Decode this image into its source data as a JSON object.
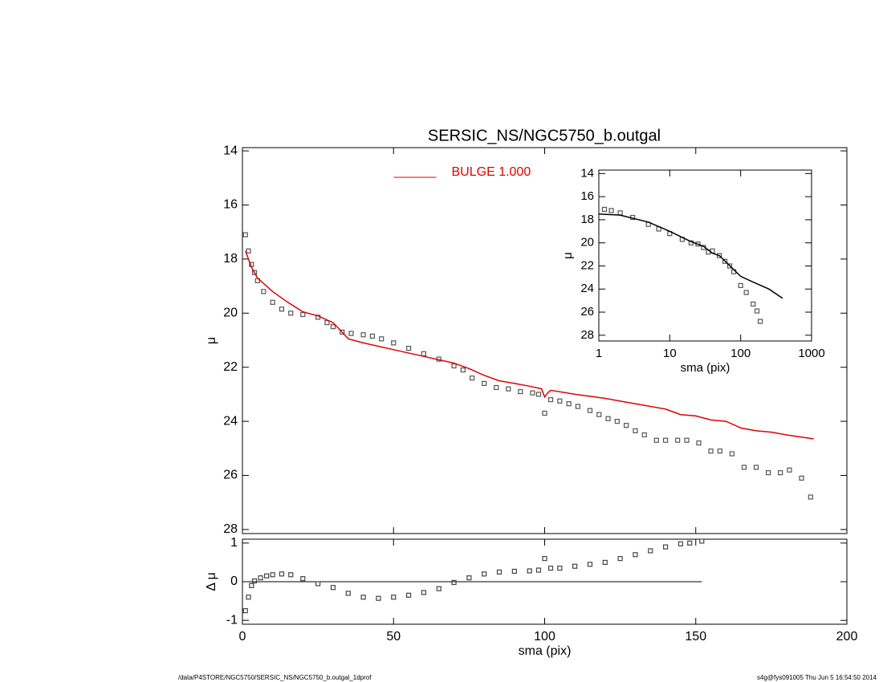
{
  "chart_data": [
    {
      "type": "scatter",
      "title": "SERSIC_NS/NGC5750_b.outgal",
      "ylabel": "μ",
      "xlim": [
        0,
        200
      ],
      "xticks": [
        0,
        50,
        100,
        150,
        200
      ],
      "xtick_labels": false,
      "ylim": [
        28.15,
        13.88
      ],
      "yticks": [
        14,
        16,
        18,
        20,
        22,
        24,
        26,
        28
      ],
      "legend": "top-center",
      "series": [
        {
          "style": "markers",
          "color": "#555555",
          "x": [
            1,
            2,
            3,
            4,
            5,
            7,
            10,
            13,
            16,
            20,
            25,
            28,
            30,
            33,
            36,
            40,
            43,
            46,
            50,
            55,
            60,
            65,
            70,
            73,
            76,
            80,
            84,
            88,
            92,
            96,
            98,
            100,
            102,
            105,
            108,
            111,
            115,
            118,
            121,
            124,
            127,
            130,
            133,
            137,
            140,
            144,
            147,
            151,
            155,
            158,
            162,
            166,
            170,
            174,
            178,
            181,
            185,
            188
          ],
          "values": [
            17.1,
            17.7,
            18.2,
            18.5,
            18.8,
            19.2,
            19.6,
            19.85,
            20.0,
            20.05,
            20.15,
            20.35,
            20.5,
            20.7,
            20.75,
            20.8,
            20.85,
            20.95,
            21.1,
            21.3,
            21.5,
            21.7,
            21.95,
            22.1,
            22.4,
            22.6,
            22.75,
            22.8,
            22.9,
            22.95,
            23.0,
            23.7,
            23.2,
            23.25,
            23.35,
            23.45,
            23.6,
            23.75,
            23.9,
            24.0,
            24.15,
            24.35,
            24.5,
            24.7,
            24.7,
            24.7,
            24.7,
            24.8,
            25.1,
            25.1,
            25.2,
            25.7,
            25.7,
            25.9,
            25.9,
            25.8,
            26.1,
            26.8
          ]
        },
        {
          "name": "BULGE  1.000",
          "style": "line",
          "color": "#e00000",
          "x": [
            1,
            3,
            5,
            10,
            15,
            20,
            25,
            30,
            33,
            35,
            40,
            50,
            60,
            70,
            75,
            80,
            85,
            90,
            95,
            99,
            100,
            101,
            102,
            110,
            120,
            130,
            140,
            145,
            150,
            155,
            160,
            165,
            170,
            175,
            180,
            189
          ],
          "values": [
            17.7,
            18.3,
            18.7,
            19.2,
            19.6,
            19.95,
            20.1,
            20.35,
            20.7,
            20.95,
            21.1,
            21.35,
            21.6,
            21.85,
            22.05,
            22.3,
            22.5,
            22.6,
            22.7,
            22.8,
            23.1,
            22.95,
            22.85,
            23.0,
            23.15,
            23.35,
            23.55,
            23.75,
            23.8,
            23.95,
            24.0,
            24.25,
            24.35,
            24.4,
            24.5,
            24.65
          ]
        }
      ]
    },
    {
      "type": "scatter",
      "xlabel": "sma (pix)",
      "ylabel": "Δ μ",
      "xlim": [
        0,
        200
      ],
      "xticks": [
        0,
        50,
        100,
        150,
        200
      ],
      "xtick_labels": true,
      "ylim": [
        -1.1,
        1.1
      ],
      "yticks": [
        -1,
        0,
        1
      ],
      "hlines": [
        0
      ],
      "series": [
        {
          "style": "markers",
          "color": "#444444",
          "x": [
            1,
            2,
            3,
            4,
            6,
            8,
            10,
            13,
            16,
            20,
            25,
            30,
            35,
            40,
            45,
            50,
            55,
            60,
            65,
            70,
            75,
            80,
            85,
            90,
            95,
            98,
            100,
            102,
            105,
            110,
            115,
            120,
            125,
            130,
            135,
            140,
            145,
            148,
            152
          ],
          "values": [
            -0.75,
            -0.4,
            -0.1,
            0.02,
            0.1,
            0.15,
            0.18,
            0.2,
            0.18,
            0.08,
            -0.05,
            -0.15,
            -0.3,
            -0.4,
            -0.43,
            -0.4,
            -0.35,
            -0.28,
            -0.18,
            -0.02,
            0.1,
            0.2,
            0.25,
            0.27,
            0.28,
            0.3,
            0.6,
            0.35,
            0.35,
            0.4,
            0.45,
            0.5,
            0.6,
            0.7,
            0.8,
            0.9,
            0.98,
            1.0,
            1.05
          ]
        }
      ]
    },
    {
      "type": "scatter",
      "xlabel": "sma (pix)",
      "ylabel": "μ",
      "xscale": "log",
      "xlim": [
        1,
        1000
      ],
      "xticks": [
        1,
        10,
        100,
        1000
      ],
      "xtick_labels": true,
      "ylim": [
        28.5,
        13.7
      ],
      "yticks": [
        14,
        16,
        18,
        20,
        22,
        24,
        26,
        28
      ],
      "series": [
        {
          "style": "markers",
          "color": "#555555",
          "x": [
            1.2,
            1.5,
            2,
            3,
            5,
            7,
            10,
            15,
            20,
            25,
            30,
            35,
            40,
            50,
            60,
            70,
            80,
            100,
            120,
            150,
            170,
            189
          ],
          "values": [
            17.1,
            17.2,
            17.4,
            17.8,
            18.4,
            18.8,
            19.2,
            19.7,
            20.0,
            20.1,
            20.4,
            20.8,
            20.7,
            21.1,
            21.6,
            22.0,
            22.5,
            23.7,
            24.3,
            25.3,
            25.9,
            26.8
          ]
        },
        {
          "style": "line",
          "color": "#000000",
          "x": [
            1,
            2,
            5,
            10,
            20,
            30,
            40,
            50,
            100,
            150,
            250,
            390
          ],
          "values": [
            17.5,
            17.6,
            18.2,
            19.0,
            19.9,
            20.3,
            20.9,
            21.1,
            22.9,
            23.4,
            24.0,
            24.8
          ]
        }
      ]
    }
  ],
  "footer": {
    "left": "/data/P4STORE/NGC5750/SERSIC_NS/NGC5750_b.outgal_1dprof",
    "right": "s4g@fys091005  Thu Jun  5 16:54:50 2014"
  }
}
